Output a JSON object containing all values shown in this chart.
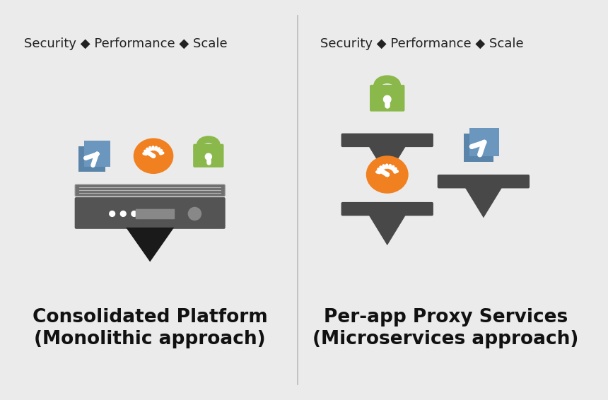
{
  "bg_color": "#ebebeb",
  "divider_color": "#bbbbbb",
  "title_color": "#222222",
  "label_color": "#111111",
  "header_text_left": "Security ◆ Performance ◆ Scale",
  "header_text_right": "Security ◆ Performance ◆ Scale",
  "label_left_line1": "Consolidated Platform",
  "label_left_line2": "(Monolithic approach)",
  "label_right_line1": "Per-app Proxy Services",
  "label_right_line2": "(Microservices approach)",
  "blue_color": "#6b96be",
  "blue_dark": "#5a84aa",
  "orange_color": "#f08020",
  "green_color": "#8ab84a",
  "server_top_color": "#606060",
  "server_bot_color": "#555555",
  "stand_color": "#303030",
  "platform_color": "#484848",
  "header_fontsize": 13,
  "label_fontsize": 19
}
